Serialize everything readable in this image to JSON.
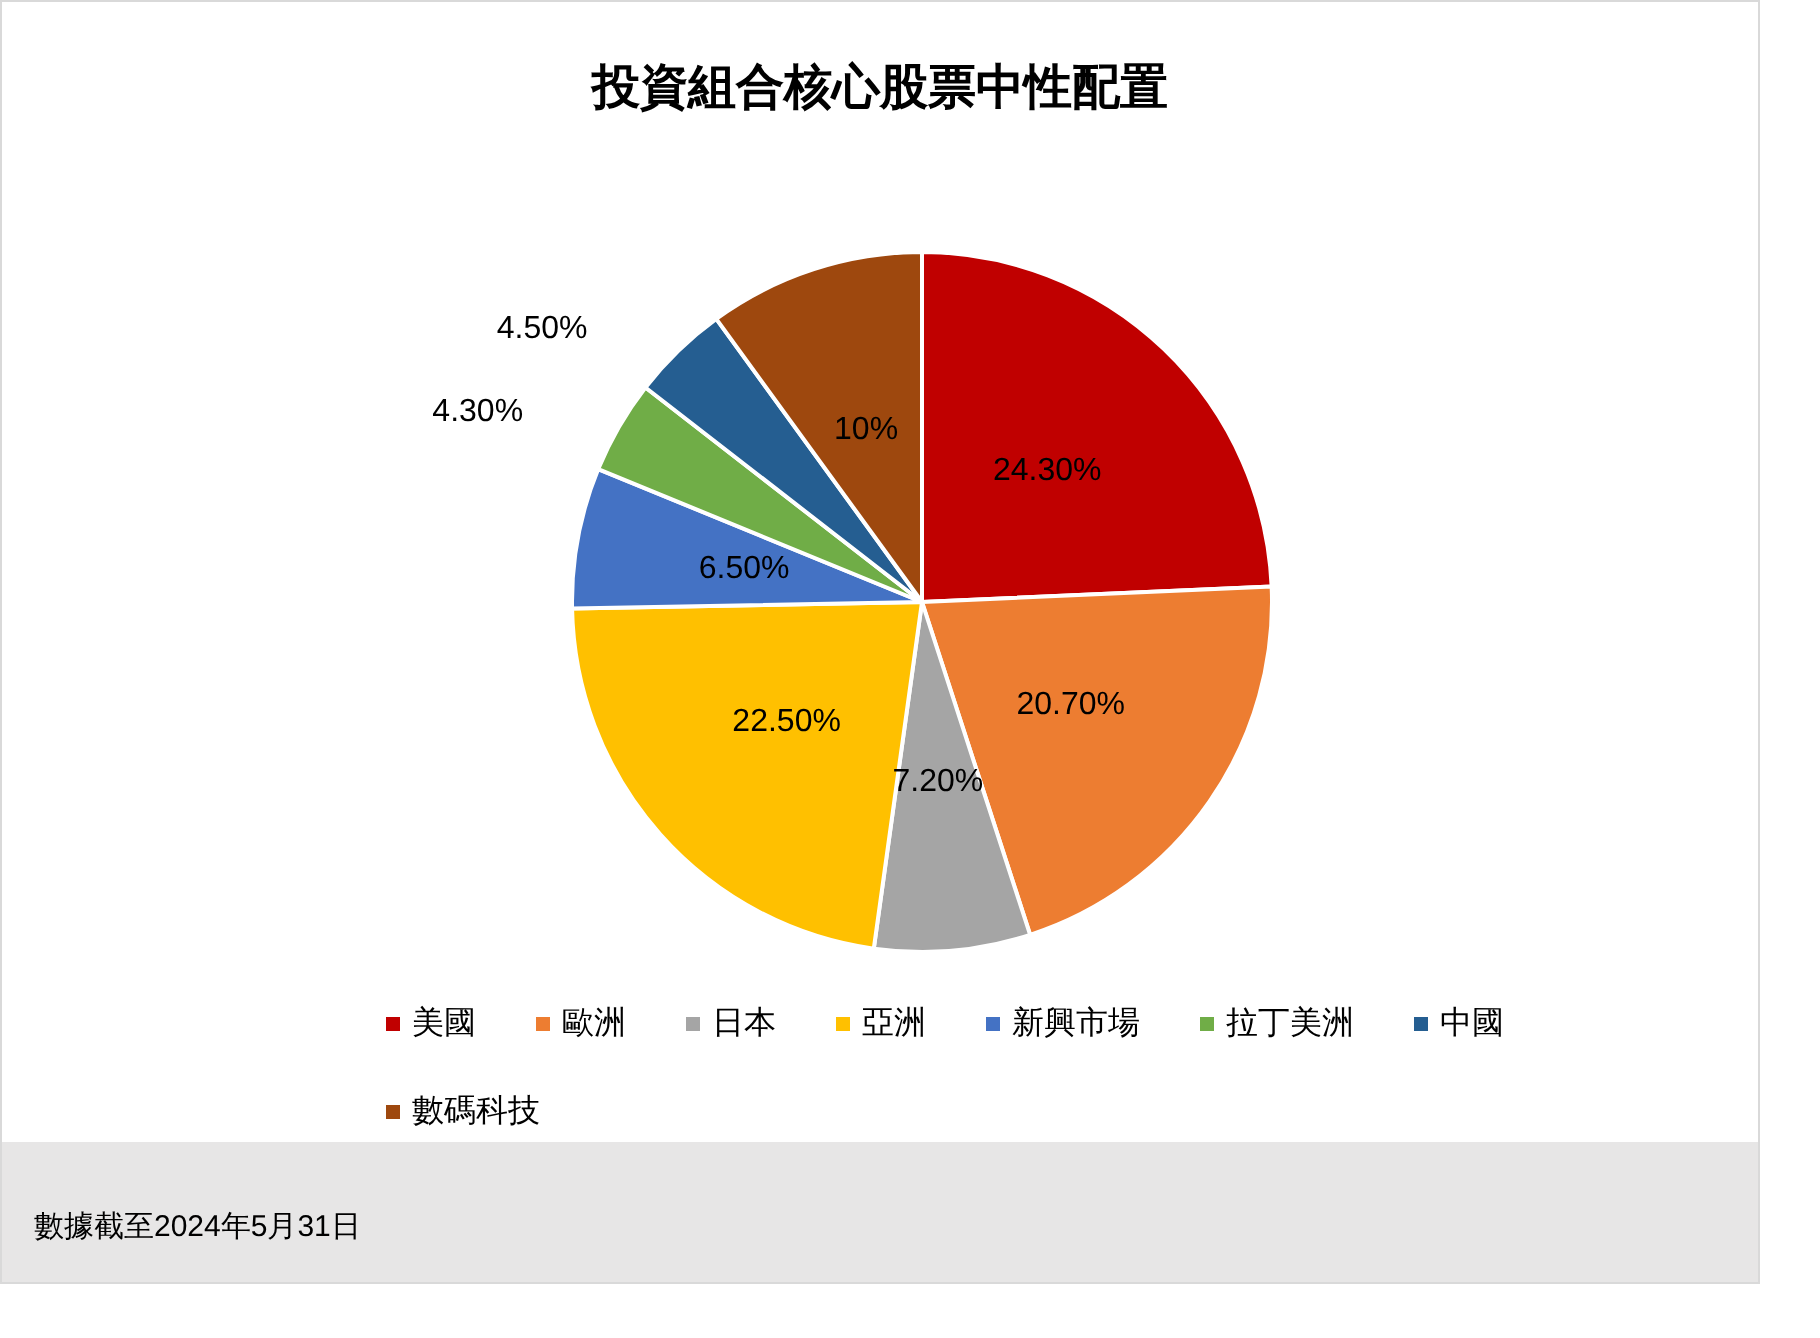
{
  "chart_data": {
    "type": "pie",
    "title": "投資組合核心股票中性配置",
    "categories": [
      "美國",
      "歐洲",
      "日本",
      "亞洲",
      "新興市場",
      "拉丁美洲",
      "中國",
      "數碼科技"
    ],
    "values": [
      24.3,
      20.7,
      7.2,
      22.5,
      6.5,
      4.3,
      4.5,
      10
    ],
    "colors": [
      "#c00000",
      "#ed7d31",
      "#a5a5a5",
      "#ffc000",
      "#4472c4",
      "#70ad47",
      "#255e91",
      "#9e480e"
    ],
    "value_labels": [
      "24.30%",
      "20.70%",
      "7.20%",
      "22.50%",
      "6.50%",
      "4.30%",
      "4.50%",
      "10%"
    ],
    "legend": "bottom",
    "annotations": [
      "數據截至2024年5月31日"
    ]
  }
}
